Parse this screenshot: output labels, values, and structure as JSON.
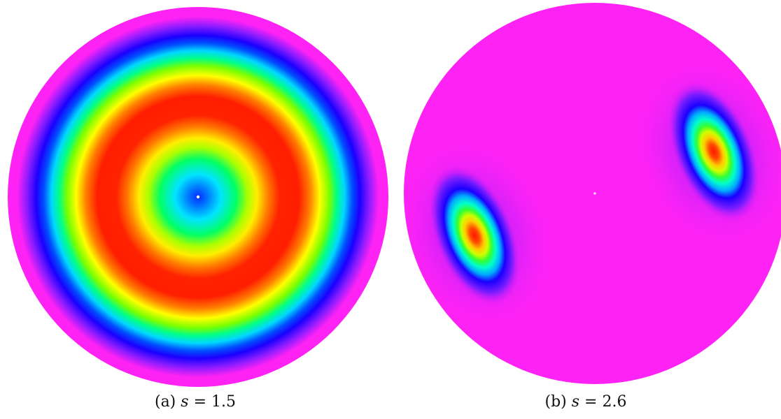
{
  "colors": {
    "background_field": "#ff22f5",
    "peak": "#ff1a00",
    "center_dot": "#ffffff",
    "colormap": [
      "#ff22f5",
      "#7a1cff",
      "#1a00ff",
      "#0066ff",
      "#00e5ff",
      "#00ff66",
      "#aaff00",
      "#ffff00",
      "#ff8800",
      "#ff1a00"
    ]
  },
  "panels": [
    {
      "id": "a",
      "label": "(a)",
      "variable": "s",
      "equals": "=",
      "value": "1.5",
      "pattern": "concentric-rings"
    },
    {
      "id": "b",
      "label": "(b)",
      "variable": "s",
      "equals": "=",
      "value": "2.6",
      "pattern": "two-off-center-spots"
    }
  ]
}
